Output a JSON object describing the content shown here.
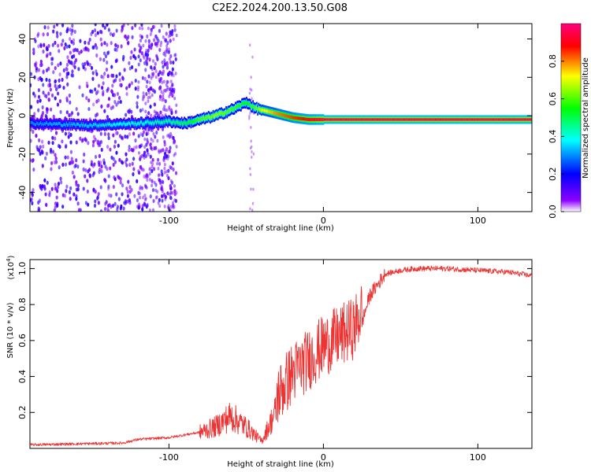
{
  "title": "C2E2.2024.200.13.50.G08",
  "chart_data": [
    {
      "type": "heatmap",
      "name": "spectrogram",
      "xlabel": "Height of straight line (km)",
      "ylabel": "Frequency (Hz)",
      "xlim": [
        -190,
        135
      ],
      "ylim": [
        -50,
        48
      ],
      "xticks": [
        -100,
        0,
        100
      ],
      "yticks": [
        40,
        20,
        0,
        -20,
        -40
      ],
      "colorbar": {
        "label": "Normalized spectral amplitude",
        "range": [
          0,
          1
        ],
        "ticks": [
          0.0,
          0.2,
          0.4,
          0.6,
          0.8
        ],
        "colors": [
          "#ffffff",
          "#8c00ff",
          "#0000ff",
          "#00ffff",
          "#00ff00",
          "#ffff00",
          "#ff0000",
          "#ff0080"
        ]
      },
      "ridge": {
        "x": [
          -190,
          -150,
          -120,
          -100,
          -90,
          -80,
          -70,
          -60,
          -50,
          -45,
          -40,
          -30,
          -20,
          -10,
          0,
          20,
          50,
          100,
          135
        ],
        "freq": [
          -4,
          -5,
          -4,
          -3,
          -4,
          -2,
          0,
          3,
          7,
          4,
          3,
          1,
          -1,
          -2,
          -2,
          -2,
          -2,
          -2,
          -2
        ],
        "amplitude": [
          0.3,
          0.35,
          0.4,
          0.45,
          0.5,
          0.6,
          0.65,
          0.6,
          0.55,
          0.6,
          0.7,
          0.8,
          0.85,
          0.9,
          0.95,
          0.95,
          0.95,
          0.95,
          0.95
        ]
      }
    },
    {
      "type": "line",
      "name": "snr",
      "xlabel": "Height of straight line (km)",
      "ylabel": "SNR (10 * v/v)",
      "yscale_label_base": "(x10",
      "yscale_label_exp": "4",
      "yscale_label_close": ")",
      "xlim": [
        -190,
        135
      ],
      "ylim": [
        0,
        1.05
      ],
      "xticks": [
        -100,
        0,
        100
      ],
      "yticks": [
        0.2,
        0.4,
        0.6,
        0.8,
        1.0
      ],
      "line_color": "#ee3333",
      "envelope": {
        "x": [
          -190,
          -130,
          -120,
          -100,
          -80,
          -70,
          -60,
          -50,
          -40,
          -30,
          -20,
          -10,
          0,
          10,
          20,
          25,
          30,
          40,
          50,
          60,
          80,
          100,
          120,
          135
        ],
        "y": [
          0.02,
          0.03,
          0.05,
          0.06,
          0.09,
          0.12,
          0.18,
          0.12,
          0.04,
          0.22,
          0.35,
          0.42,
          0.5,
          0.55,
          0.6,
          0.7,
          0.85,
          0.97,
          0.99,
          1.0,
          1.0,
          0.99,
          0.98,
          0.96
        ]
      }
    }
  ]
}
